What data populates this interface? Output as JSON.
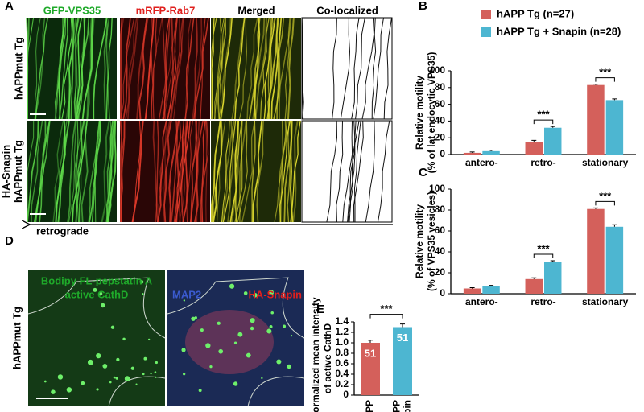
{
  "panel_labels": [
    "A",
    "B",
    "C",
    "D",
    "E"
  ],
  "panel_a": {
    "columns": [
      "GFP-VPS35",
      "mRFP-Rab7",
      "Merged",
      "Co-localized"
    ],
    "rows": [
      [
        "hAPPmut Tg"
      ],
      [
        "HA-Snapin",
        "hAPPmut Tg"
      ]
    ],
    "arrow_label": "retrograde"
  },
  "panel_d": {
    "green_label": [
      "Bodipy FL-pepstatin A",
      "active CathD"
    ],
    "blue_label": "MAP2",
    "red_label": "HA-Snapin",
    "row_label": "hAPPmut Tg"
  },
  "chart_data": [
    {
      "type": "bar",
      "ylabel": [
        "Relative motility",
        "(% of lat endocytic VPS35)"
      ],
      "categories": [
        "antero-",
        "retro-",
        "stationary"
      ],
      "series": [
        {
          "name": "hAPP Tg (n=27)",
          "color": "#d4605b",
          "values": [
            2,
            15,
            83
          ],
          "errors": [
            1,
            2,
            1
          ]
        },
        {
          "name": "hAPP Tg + Snapin (n=28)",
          "color": "#4db6d1",
          "values": [
            4,
            32,
            65
          ],
          "errors": [
            1,
            1.5,
            1.5
          ]
        }
      ],
      "ylim": [
        0,
        100
      ],
      "yticks": [
        0,
        20,
        40,
        60,
        80,
        100
      ],
      "annotations": [
        "***",
        "***"
      ]
    },
    {
      "type": "bar",
      "ylabel": [
        "Relative motility",
        "(% of VPS35 vesicles)"
      ],
      "categories": [
        "antero-",
        "retro-",
        "stationary"
      ],
      "series": [
        {
          "color": "#d4605b",
          "values": [
            5,
            14,
            81
          ],
          "errors": [
            0.8,
            1.2,
            1
          ]
        },
        {
          "color": "#4db6d1",
          "values": [
            7,
            30,
            64
          ],
          "errors": [
            1,
            1.5,
            2
          ]
        }
      ],
      "ylim": [
        0,
        100
      ],
      "yticks": [
        0,
        20,
        40,
        60,
        80,
        100
      ],
      "annotations": [
        "***",
        "***"
      ]
    },
    {
      "type": "colbar",
      "ylabel": [
        "Normalized mean intensity",
        "of active CathD"
      ],
      "categories": [
        [
          "hAPP"
        ],
        [
          "hAPP",
          "Snapin"
        ]
      ],
      "values": [
        1.0,
        1.3
      ],
      "errors": [
        0.05,
        0.06
      ],
      "colors": [
        "#d4605b",
        "#4db6d1"
      ],
      "n_labels": [
        "51",
        "51"
      ],
      "ylim": [
        0,
        1.4
      ],
      "yticks": [
        0,
        0.2,
        0.4,
        0.6,
        0.8,
        {
          "value": 1,
          "label": "1.0"
        },
        1.2,
        1.4
      ],
      "annotations": [
        "***"
      ]
    }
  ]
}
